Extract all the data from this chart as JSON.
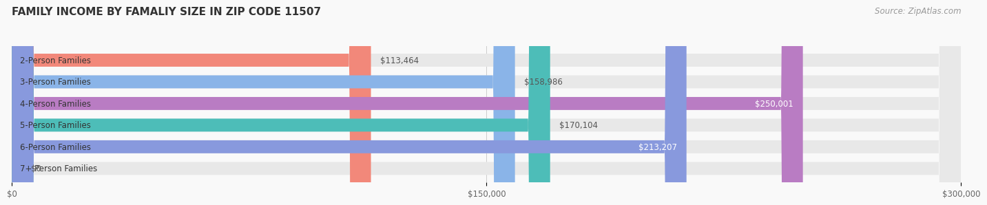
{
  "title": "FAMILY INCOME BY FAMALIY SIZE IN ZIP CODE 11507",
  "source": "Source: ZipAtlas.com",
  "categories": [
    "2-Person Families",
    "3-Person Families",
    "4-Person Families",
    "5-Person Families",
    "6-Person Families",
    "7+ Person Families"
  ],
  "values": [
    113464,
    158986,
    250001,
    170104,
    213207,
    0
  ],
  "bar_colors": [
    "#f2887a",
    "#8ab4e8",
    "#b97cc3",
    "#4dbdb8",
    "#8899dd",
    "#f4a8bb"
  ],
  "bar_bg_color": "#e8e8e8",
  "value_labels": [
    "$113,464",
    "$158,986",
    "$250,001",
    "$170,104",
    "$213,207",
    "$0"
  ],
  "xlim": [
    0,
    300000
  ],
  "xticks": [
    0,
    150000,
    300000
  ],
  "xtick_labels": [
    "$0",
    "$150,000",
    "$300,000"
  ],
  "background_color": "#f9f9f9",
  "title_fontsize": 11,
  "source_fontsize": 8.5,
  "label_fontsize": 8.5,
  "tick_fontsize": 8.5
}
